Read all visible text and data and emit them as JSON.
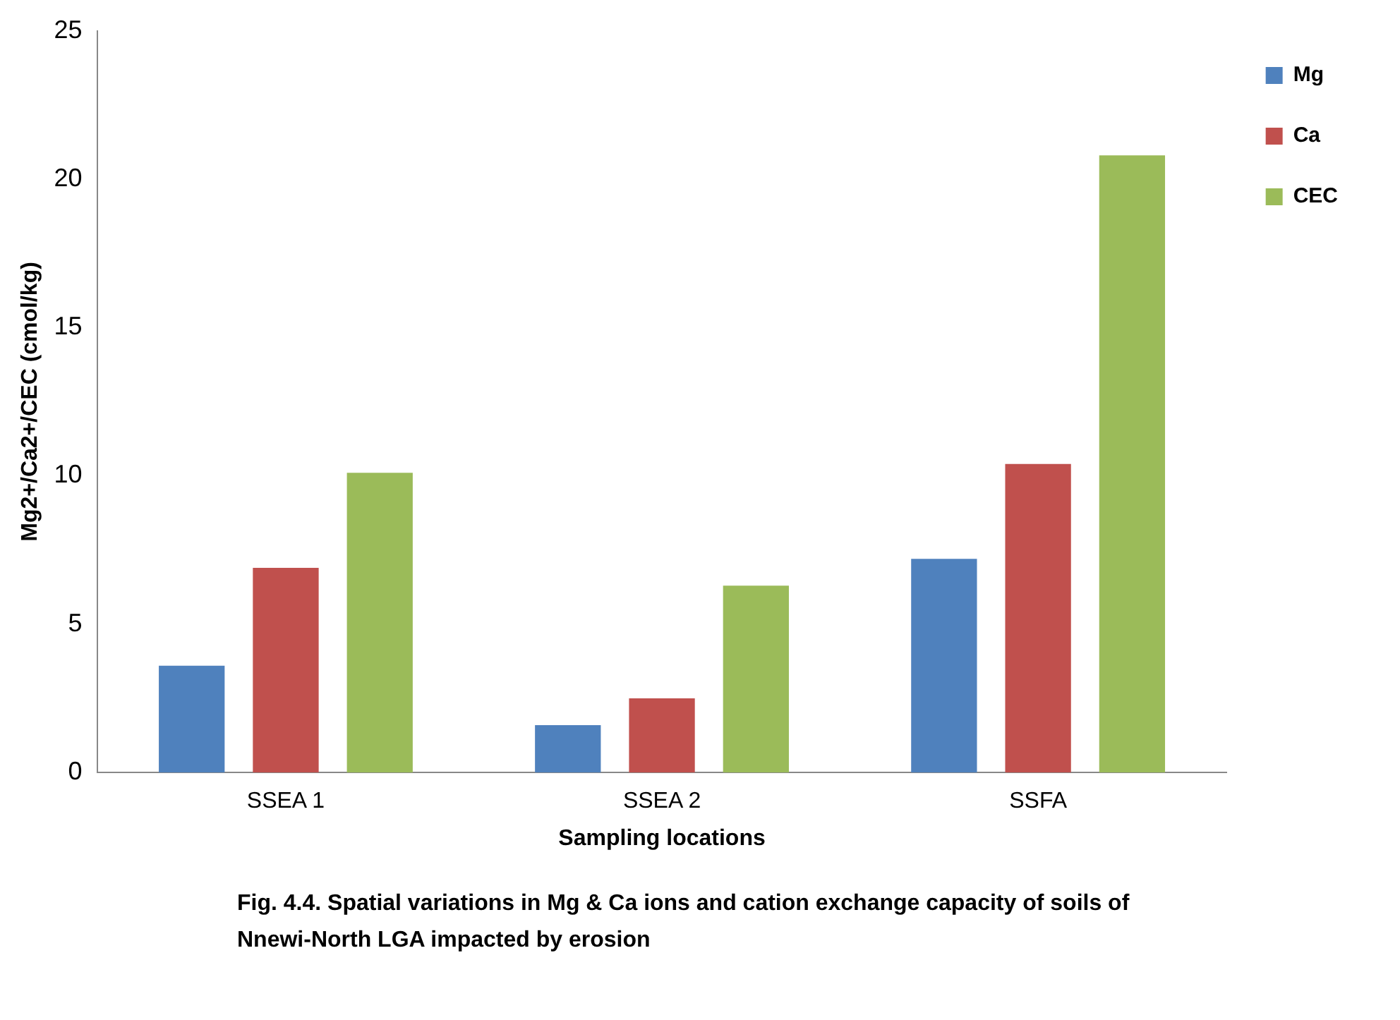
{
  "chart_data": {
    "type": "bar",
    "xlabel": "Sampling locations",
    "ylabel": "Mg2+/Ca2+/CEC (cmol/kg)",
    "categories": [
      "SSEA 1",
      "SSEA 2",
      "SSFA"
    ],
    "series": [
      {
        "name": "Mg",
        "color": "#4f81bd",
        "values": [
          3.6,
          1.6,
          7.2
        ]
      },
      {
        "name": "Ca",
        "color": "#c0504d",
        "values": [
          6.9,
          2.5,
          10.4
        ]
      },
      {
        "name": "CEC",
        "color": "#9bbb59",
        "values": [
          10.1,
          6.3,
          20.8
        ]
      }
    ],
    "ylim": [
      0,
      25
    ],
    "yticks": [
      0,
      5,
      10,
      15,
      20,
      25
    ],
    "grid": false,
    "legend": "top right",
    "annotations": [
      "Fig. 4.4. Spatial variations in Mg & Ca ions and cation exchange capacity of soils of Nnewi-North LGA impacted by erosion"
    ]
  }
}
